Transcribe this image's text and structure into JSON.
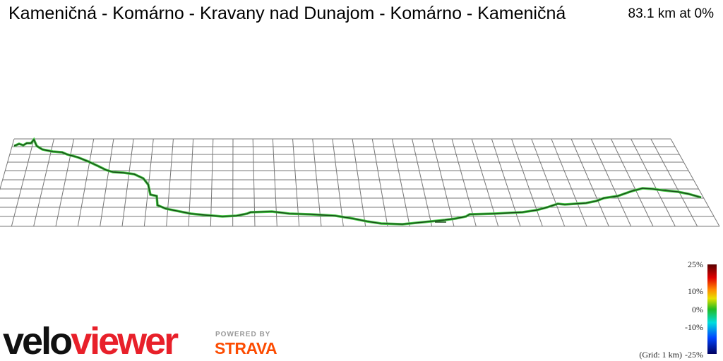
{
  "header": {
    "title": "Kameničná - Komárno - Kravany nad Dunajom - Komárno - Kameničná",
    "distance": "83.1 km at 0%"
  },
  "legend": {
    "labels": [
      "25%",
      "10%",
      "0%",
      "-10%",
      "-25%"
    ],
    "grid_note": "(Grid: 1 km)"
  },
  "logo": {
    "velo": "velo",
    "viewer": "viewer",
    "powered_by": "POWERED BY",
    "strava": "STRAVA"
  }
}
